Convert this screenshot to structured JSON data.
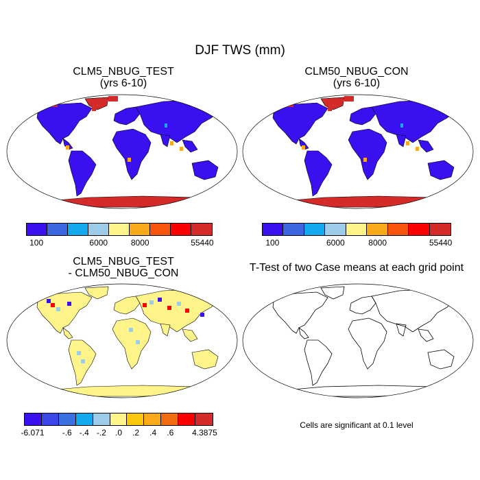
{
  "title": "DJF TWS (mm)",
  "panels": [
    {
      "id": "p1",
      "title_line1": "CLM5_NBUG_TEST",
      "title_line2": "(yrs 6-10)"
    },
    {
      "id": "p2",
      "title_line1": "CLM50_NBUG_CON",
      "title_line2": "(yrs 6-10)"
    },
    {
      "id": "p3",
      "title_line1": "CLM5_NBUG_TEST",
      "title_line2": "- CLM50_NBUG_CON"
    },
    {
      "id": "p4",
      "title_line1": "T-Test of two Case means at each grid point"
    }
  ],
  "footnote": "Cells are significant at 0.1 level",
  "colorbars": {
    "abs": {
      "colors": [
        "#3a0ff0",
        "#3b67e0",
        "#12a9ef",
        "#9dcbea",
        "#fff48a",
        "#f9a91a",
        "#f9550f",
        "#fc0000",
        "#d42a2a"
      ],
      "labels": [
        {
          "text": "100",
          "pos": 0
        },
        {
          "text": "6000",
          "pos": 3
        },
        {
          "text": "8000",
          "pos": 5
        },
        {
          "text": "55440",
          "pos": 8
        }
      ]
    },
    "diff": {
      "colors": [
        "#3a0ff0",
        "#3b47e8",
        "#3b70e0",
        "#12a9ef",
        "#9dcbea",
        "#fff48a",
        "#fcc80c",
        "#f9a91a",
        "#f26b0f",
        "#fc0000",
        "#d42a2a"
      ],
      "labels": [
        {
          "text": "-6.071",
          "pos": 0
        },
        {
          "text": "-.6",
          "pos": 2
        },
        {
          "text": "-.4",
          "pos": 3
        },
        {
          "text": "-.2",
          "pos": 4
        },
        {
          "text": ".0",
          "pos": 5
        },
        {
          "text": ".2",
          "pos": 6
        },
        {
          "text": ".4",
          "pos": 7
        },
        {
          "text": ".6",
          "pos": 8
        },
        {
          "text": "4.3875",
          "pos": 10
        }
      ]
    }
  },
  "map_colors": {
    "land_fill": "#3a0ff0",
    "antarctica": "#d42a2a",
    "greenland": "#d42a2a",
    "diff_land": "#fff48a",
    "diff_hotspots_pos": "#fc0000",
    "diff_hotspots_neg": "#3a0ff0",
    "diff_light": "#9dcbea",
    "orange": "#f9a91a",
    "cyan": "#12a9ef"
  }
}
